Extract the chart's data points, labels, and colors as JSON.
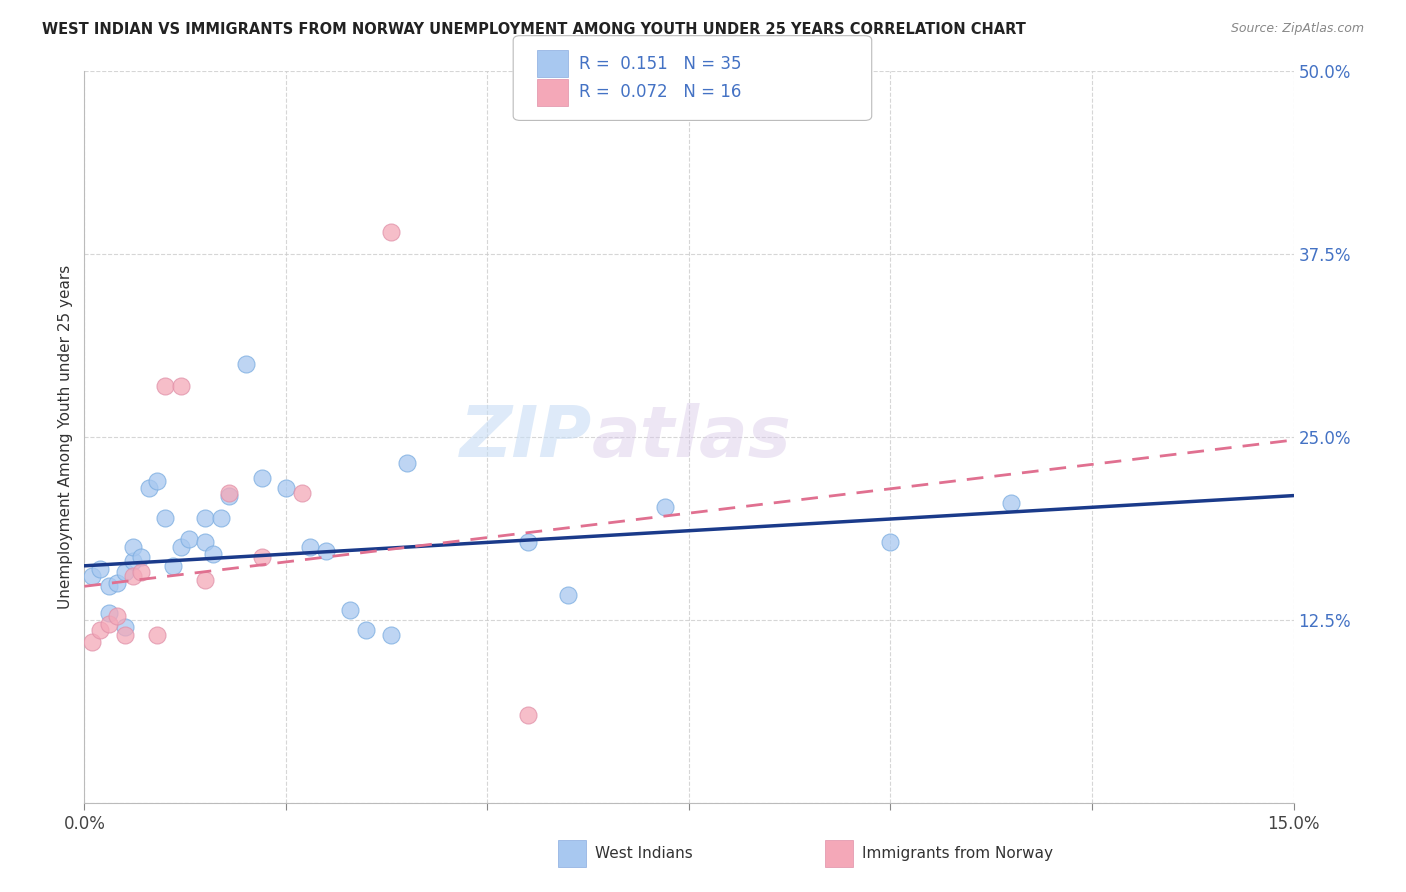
{
  "title": "WEST INDIAN VS IMMIGRANTS FROM NORWAY UNEMPLOYMENT AMONG YOUTH UNDER 25 YEARS CORRELATION CHART",
  "source": "Source: ZipAtlas.com",
  "ylabel": "Unemployment Among Youth under 25 years",
  "xlim": [
    0.0,
    0.15
  ],
  "ylim": [
    0.0,
    0.5
  ],
  "xticks": [
    0.0,
    0.025,
    0.05,
    0.075,
    0.1,
    0.125,
    0.15
  ],
  "xtick_labels": [
    "0.0%",
    "",
    "",
    "",
    "",
    "",
    "15.0%"
  ],
  "yticks": [
    0.0,
    0.125,
    0.25,
    0.375,
    0.5
  ],
  "ytick_labels": [
    "",
    "12.5%",
    "25.0%",
    "37.5%",
    "50.0%"
  ],
  "legend_x_label1": "West Indians",
  "legend_x_label2": "Immigrants from Norway",
  "west_indian_color": "#a8c8f0",
  "norway_color": "#f4a8b8",
  "trend_blue_color": "#1a3a8a",
  "trend_pink_color": "#e07090",
  "watermark_zip": "ZIP",
  "watermark_atlas": "atlas",
  "blue_R": 0.151,
  "blue_N": 35,
  "pink_R": 0.072,
  "pink_N": 16,
  "west_indian_x": [
    0.001,
    0.002,
    0.003,
    0.003,
    0.004,
    0.005,
    0.005,
    0.006,
    0.006,
    0.007,
    0.008,
    0.009,
    0.01,
    0.011,
    0.012,
    0.013,
    0.015,
    0.015,
    0.016,
    0.017,
    0.018,
    0.02,
    0.022,
    0.025,
    0.028,
    0.03,
    0.033,
    0.035,
    0.038,
    0.04,
    0.055,
    0.06,
    0.072,
    0.1,
    0.115
  ],
  "west_indian_y": [
    0.155,
    0.16,
    0.148,
    0.13,
    0.15,
    0.158,
    0.12,
    0.165,
    0.175,
    0.168,
    0.215,
    0.22,
    0.195,
    0.162,
    0.175,
    0.18,
    0.178,
    0.195,
    0.17,
    0.195,
    0.21,
    0.3,
    0.222,
    0.215,
    0.175,
    0.172,
    0.132,
    0.118,
    0.115,
    0.232,
    0.178,
    0.142,
    0.202,
    0.178,
    0.205
  ],
  "norway_x": [
    0.001,
    0.002,
    0.003,
    0.004,
    0.005,
    0.006,
    0.007,
    0.009,
    0.01,
    0.012,
    0.015,
    0.018,
    0.022,
    0.027,
    0.038,
    0.055
  ],
  "norway_y": [
    0.11,
    0.118,
    0.122,
    0.128,
    0.115,
    0.155,
    0.158,
    0.115,
    0.285,
    0.285,
    0.152,
    0.212,
    0.168,
    0.212,
    0.39,
    0.06
  ],
  "blue_trend_y0": 0.162,
  "blue_trend_y1": 0.21,
  "pink_trend_y0": 0.148,
  "pink_trend_y1": 0.248
}
